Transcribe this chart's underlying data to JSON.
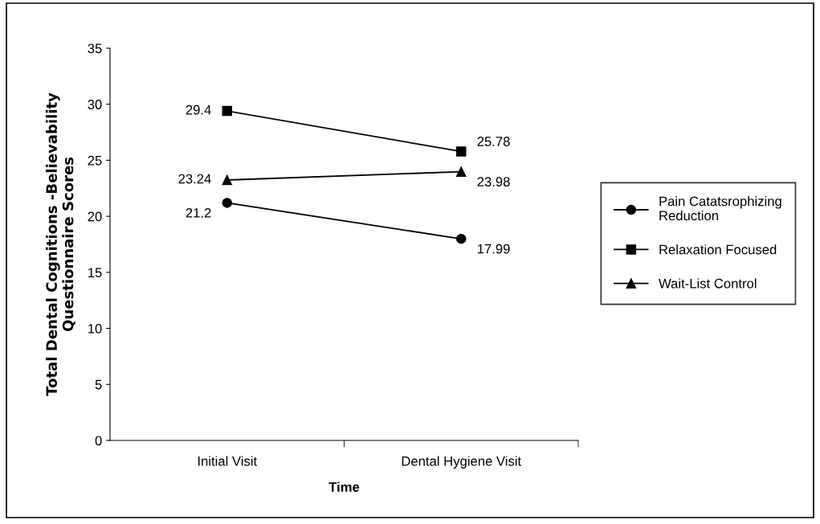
{
  "chart_data": {
    "type": "line",
    "xlabel": "Time",
    "ylabel": "Total Dental Cognitions -Believability\nQuestionnaire Scores",
    "categories": [
      "Initial Visit",
      "Dental Hygiene Visit"
    ],
    "series": [
      {
        "name": "Pain Catatsrophizing\nReduction",
        "color": "#000000",
        "marker": "circle",
        "values": [
          21.2,
          17.99
        ]
      },
      {
        "name": "Relaxation Focused",
        "color": "#000000",
        "marker": "square",
        "values": [
          29.4,
          25.78
        ]
      },
      {
        "name": "Wait-List Control",
        "color": "#000000",
        "marker": "triangle",
        "values": [
          23.24,
          23.98
        ]
      }
    ],
    "ylim": [
      0,
      35
    ],
    "yticks": [
      0,
      5,
      10,
      15,
      20,
      25,
      30,
      35
    ],
    "grid": false,
    "legend": "right",
    "data_labels": true,
    "line_style": "solid"
  }
}
